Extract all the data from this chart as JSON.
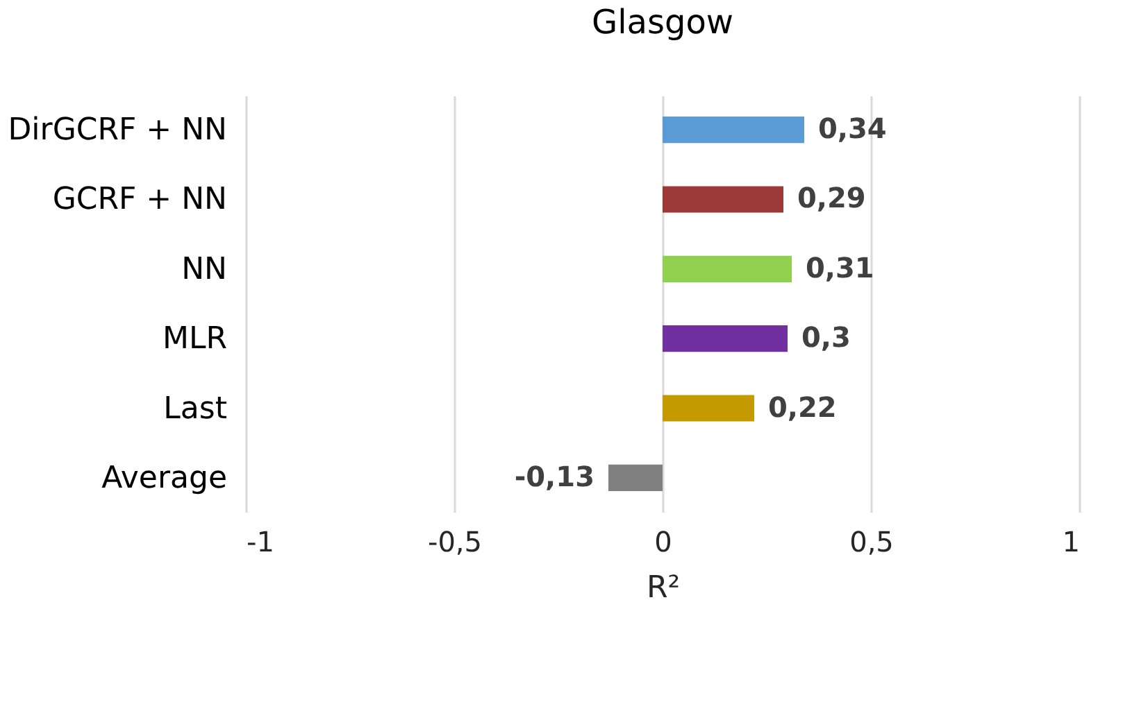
{
  "chart_data": {
    "type": "bar",
    "orientation": "horizontal",
    "title": "Glasgow",
    "xlabel": "R²",
    "categories": [
      "DirGCRF + NN",
      "GCRF + NN",
      "NN",
      "MLR",
      "Last",
      "Average"
    ],
    "values": [
      0.34,
      0.29,
      0.31,
      0.3,
      0.22,
      -0.13
    ],
    "colors": [
      "#5b9bd5",
      "#9b3a36",
      "#92d050",
      "#7030a0",
      "#c49a00",
      "#808080"
    ],
    "value_labels": [
      "0,34",
      "0,29",
      "0,31",
      "0,3",
      "0,22",
      "-0,13"
    ],
    "xlim": [
      -1,
      1
    ],
    "xticks": [
      {
        "value": -1,
        "label": "-1"
      },
      {
        "value": -0.5,
        "label": "-0,5"
      },
      {
        "value": 0,
        "label": "0"
      },
      {
        "value": 0.5,
        "label": "0,5"
      },
      {
        "value": 1,
        "label": "1"
      }
    ],
    "grid": "x"
  }
}
